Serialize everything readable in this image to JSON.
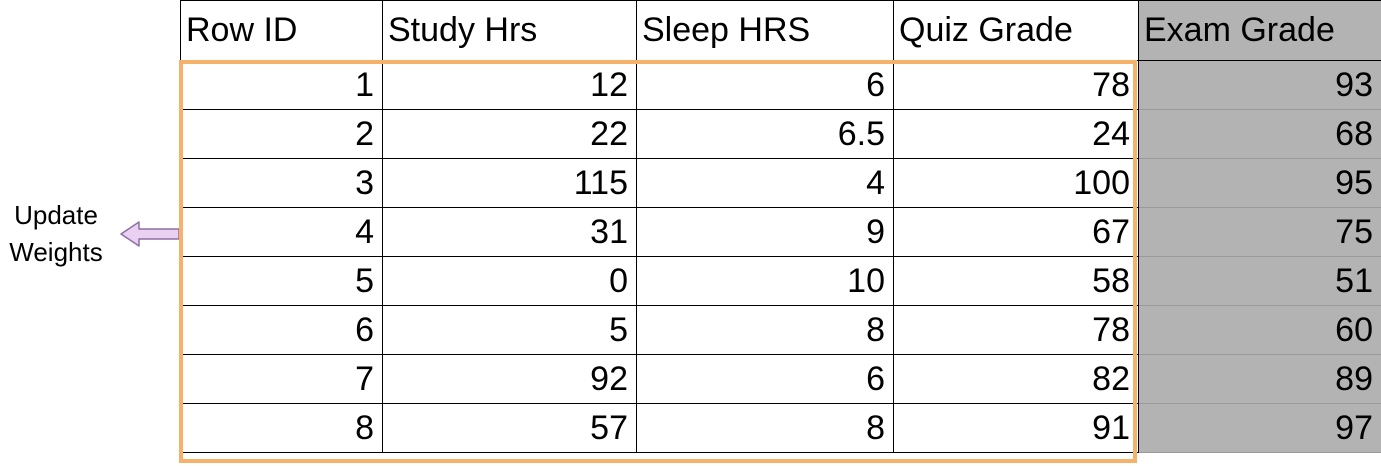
{
  "annotation": {
    "line1": "Update",
    "line2": "Weights"
  },
  "table": {
    "headers": [
      "Row ID",
      "Study Hrs",
      "Sleep HRS",
      "Quiz Grade",
      "Exam Grade"
    ],
    "rows": [
      [
        "1",
        "12",
        "6",
        "78",
        "93"
      ],
      [
        "2",
        "22",
        "6.5",
        "24",
        "68"
      ],
      [
        "3",
        "115",
        "4",
        "100",
        "95"
      ],
      [
        "4",
        "31",
        "9",
        "67",
        "75"
      ],
      [
        "5",
        "0",
        "10",
        "58",
        "51"
      ],
      [
        "6",
        "5",
        "8",
        "78",
        "60"
      ],
      [
        "7",
        "92",
        "6",
        "82",
        "89"
      ],
      [
        "8",
        "57",
        "8",
        "91",
        "97"
      ]
    ]
  },
  "colors": {
    "feature_highlight": "#f6b26b",
    "target_fill": "#b3b3b3",
    "arrow_fill": "#ead1f2",
    "arrow_stroke": "#8e6fa3"
  },
  "icons": {
    "arrow": "left-arrow-icon"
  }
}
